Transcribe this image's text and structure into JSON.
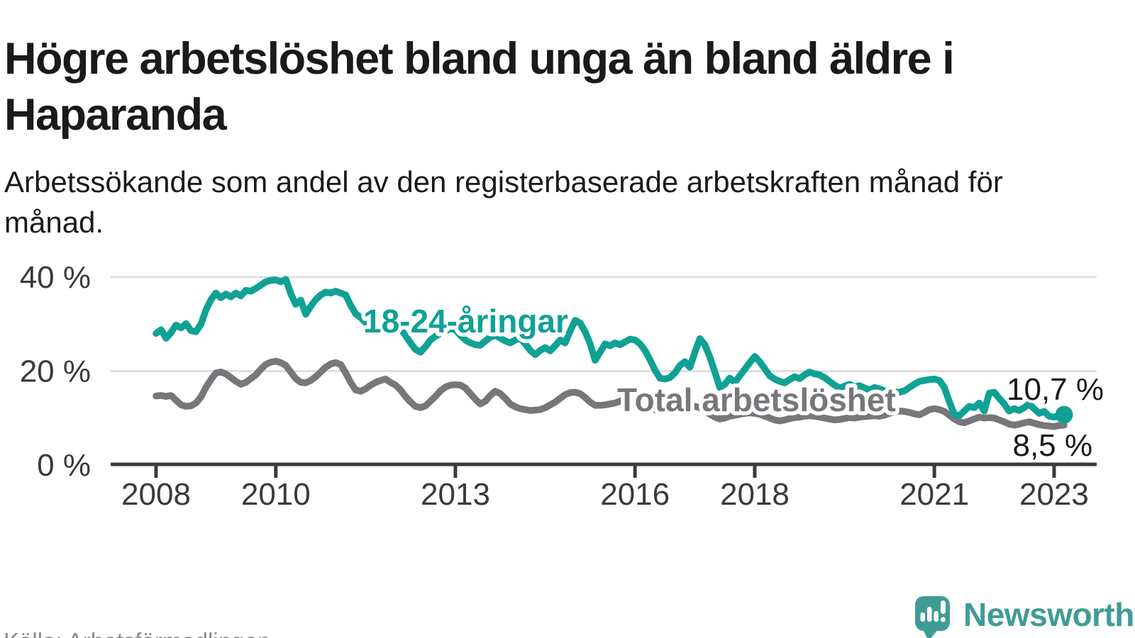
{
  "header": {
    "title": "Högre arbetslöshet bland unga än bland äldre i Haparanda",
    "subtitle": "Arbetssökande som andel av den registerbaserade arbetskraften månad för månad."
  },
  "chart_data": {
    "type": "line",
    "unit": "%",
    "x_range": {
      "start": "2008-01",
      "end": "2023-03",
      "interval": "monthly"
    },
    "ylim": [
      0,
      42
    ],
    "grid": "horizontal",
    "y_ticks": [
      {
        "value": 0,
        "label": "0 %"
      },
      {
        "value": 20,
        "label": "20 %"
      },
      {
        "value": 40,
        "label": "40 %"
      }
    ],
    "x_ticks": [
      {
        "year": 2008,
        "label": "2008"
      },
      {
        "year": 2010,
        "label": "2010"
      },
      {
        "year": 2013,
        "label": "2013"
      },
      {
        "year": 2016,
        "label": "2016"
      },
      {
        "year": 2018,
        "label": "2018"
      },
      {
        "year": 2021,
        "label": "2021"
      },
      {
        "year": 2023,
        "label": "2023"
      }
    ],
    "series": [
      {
        "name": "18-24-åringar",
        "color": "#10a195",
        "end_label": "10,7 %",
        "end_value": 10.7,
        "values": [
          28.0,
          28.8,
          27.0,
          28.2,
          29.8,
          29.2,
          30.1,
          28.6,
          28.4,
          30.0,
          33.0,
          35.2,
          36.6,
          35.6,
          36.4,
          35.8,
          36.6,
          36.0,
          37.2,
          37.0,
          37.6,
          38.3,
          39.0,
          39.3,
          39.4,
          39.0,
          39.5,
          36.5,
          34.2,
          35.1,
          32.1,
          33.8,
          35.2,
          36.2,
          36.8,
          36.6,
          37.0,
          36.6,
          36.2,
          34.0,
          32.2,
          31.4,
          30.3,
          29.6,
          30.4,
          29.6,
          29.9,
          30.6,
          30.2,
          29.0,
          27.6,
          26.0,
          24.6,
          24.0,
          25.2,
          26.6,
          27.4,
          28.0,
          28.6,
          29.0,
          28.8,
          27.6,
          26.6,
          26.0,
          25.6,
          25.5,
          26.4,
          27.2,
          27.6,
          27.0,
          26.4,
          26.0,
          26.6,
          27.0,
          25.8,
          24.4,
          23.5,
          24.4,
          25.0,
          24.3,
          25.4,
          26.6,
          26.0,
          28.5,
          30.8,
          30.2,
          28.4,
          25.8,
          22.3,
          24.0,
          25.8,
          25.4,
          26.0,
          25.6,
          26.2,
          26.8,
          26.6,
          25.8,
          24.4,
          22.4,
          20.2,
          18.5,
          18.3,
          18.6,
          19.6,
          21.2,
          22.0,
          20.8,
          24.0,
          26.9,
          25.6,
          23.0,
          19.8,
          16.5,
          17.2,
          18.5,
          17.6,
          19.0,
          20.4,
          21.8,
          23.1,
          22.0,
          20.5,
          19.0,
          18.3,
          17.8,
          17.5,
          18.2,
          18.8,
          18.4,
          19.2,
          19.8,
          19.4,
          19.2,
          18.6,
          17.8,
          17.0,
          16.4,
          16.8,
          17.2,
          16.6,
          16.9,
          16.4,
          16.0,
          16.5,
          16.2,
          15.8,
          16.0,
          15.6,
          15.5,
          15.8,
          16.5,
          17.2,
          17.8,
          18.0,
          18.2,
          18.3,
          18.0,
          16.5,
          13.5,
          10.8,
          10.5,
          11.5,
          12.5,
          12.2,
          13.2,
          11.5,
          15.3,
          15.5,
          14.2,
          13.0,
          11.5,
          12.0,
          11.6,
          12.2,
          13.0,
          12.0,
          11.0,
          11.4,
          10.4,
          10.2,
          10.5,
          10.7
        ]
      },
      {
        "name": "Total arbetslöshet",
        "color": "#77777b",
        "end_label": "8,5 %",
        "end_value": 8.5,
        "values": [
          14.7,
          14.8,
          14.6,
          14.8,
          13.8,
          12.8,
          12.5,
          12.6,
          13.2,
          14.5,
          16.5,
          18.2,
          19.6,
          19.8,
          19.4,
          18.6,
          17.8,
          17.2,
          17.6,
          18.4,
          19.2,
          20.4,
          21.4,
          21.9,
          22.1,
          21.8,
          21.2,
          19.8,
          18.4,
          17.6,
          17.5,
          18.0,
          18.8,
          19.8,
          20.8,
          21.5,
          21.8,
          21.4,
          19.6,
          17.6,
          16.0,
          15.7,
          16.2,
          17.0,
          17.6,
          18.0,
          18.3,
          17.6,
          17.0,
          16.0,
          14.6,
          13.4,
          12.5,
          12.2,
          12.6,
          13.6,
          14.6,
          15.8,
          16.6,
          17.0,
          17.1,
          17.0,
          16.4,
          15.2,
          14.0,
          13.0,
          13.6,
          14.8,
          15.7,
          15.2,
          14.2,
          13.0,
          12.4,
          12.0,
          11.8,
          11.6,
          11.7,
          11.8,
          12.2,
          12.8,
          13.4,
          14.2,
          15.0,
          15.4,
          15.5,
          15.2,
          14.4,
          13.4,
          12.7,
          12.7,
          12.8,
          13.0,
          13.2,
          13.6,
          14.0,
          14.3,
          14.2,
          13.8,
          13.2,
          12.4,
          11.8,
          11.4,
          11.6,
          12.0,
          12.2,
          12.5,
          12.8,
          12.6,
          12.5,
          12.2,
          11.6,
          10.8,
          10.2,
          9.8,
          10.0,
          10.4,
          10.6,
          10.8,
          11.0,
          11.1,
          11.0,
          10.8,
          10.4,
          10.0,
          9.6,
          9.4,
          9.6,
          9.9,
          10.1,
          10.2,
          10.4,
          10.5,
          10.4,
          10.2,
          10.0,
          9.8,
          9.6,
          9.7,
          9.9,
          10.1,
          10.0,
          10.2,
          10.3,
          10.4,
          10.5,
          10.4,
          10.6,
          11.0,
          11.3,
          11.5,
          11.4,
          11.2,
          10.9,
          10.7,
          11.2,
          11.8,
          12.0,
          11.8,
          11.4,
          10.6,
          9.8,
          9.2,
          9.0,
          9.4,
          9.8,
          10.2,
          10.0,
          10.1,
          10.0,
          9.6,
          9.2,
          8.7,
          8.5,
          8.7,
          9.0,
          9.2,
          8.9,
          8.6,
          8.4,
          8.3,
          8.2,
          8.4,
          8.5
        ]
      }
    ]
  },
  "footer": {
    "source": "Källa: Arbetsförmedlingen",
    "brand": "Newsworthy"
  }
}
